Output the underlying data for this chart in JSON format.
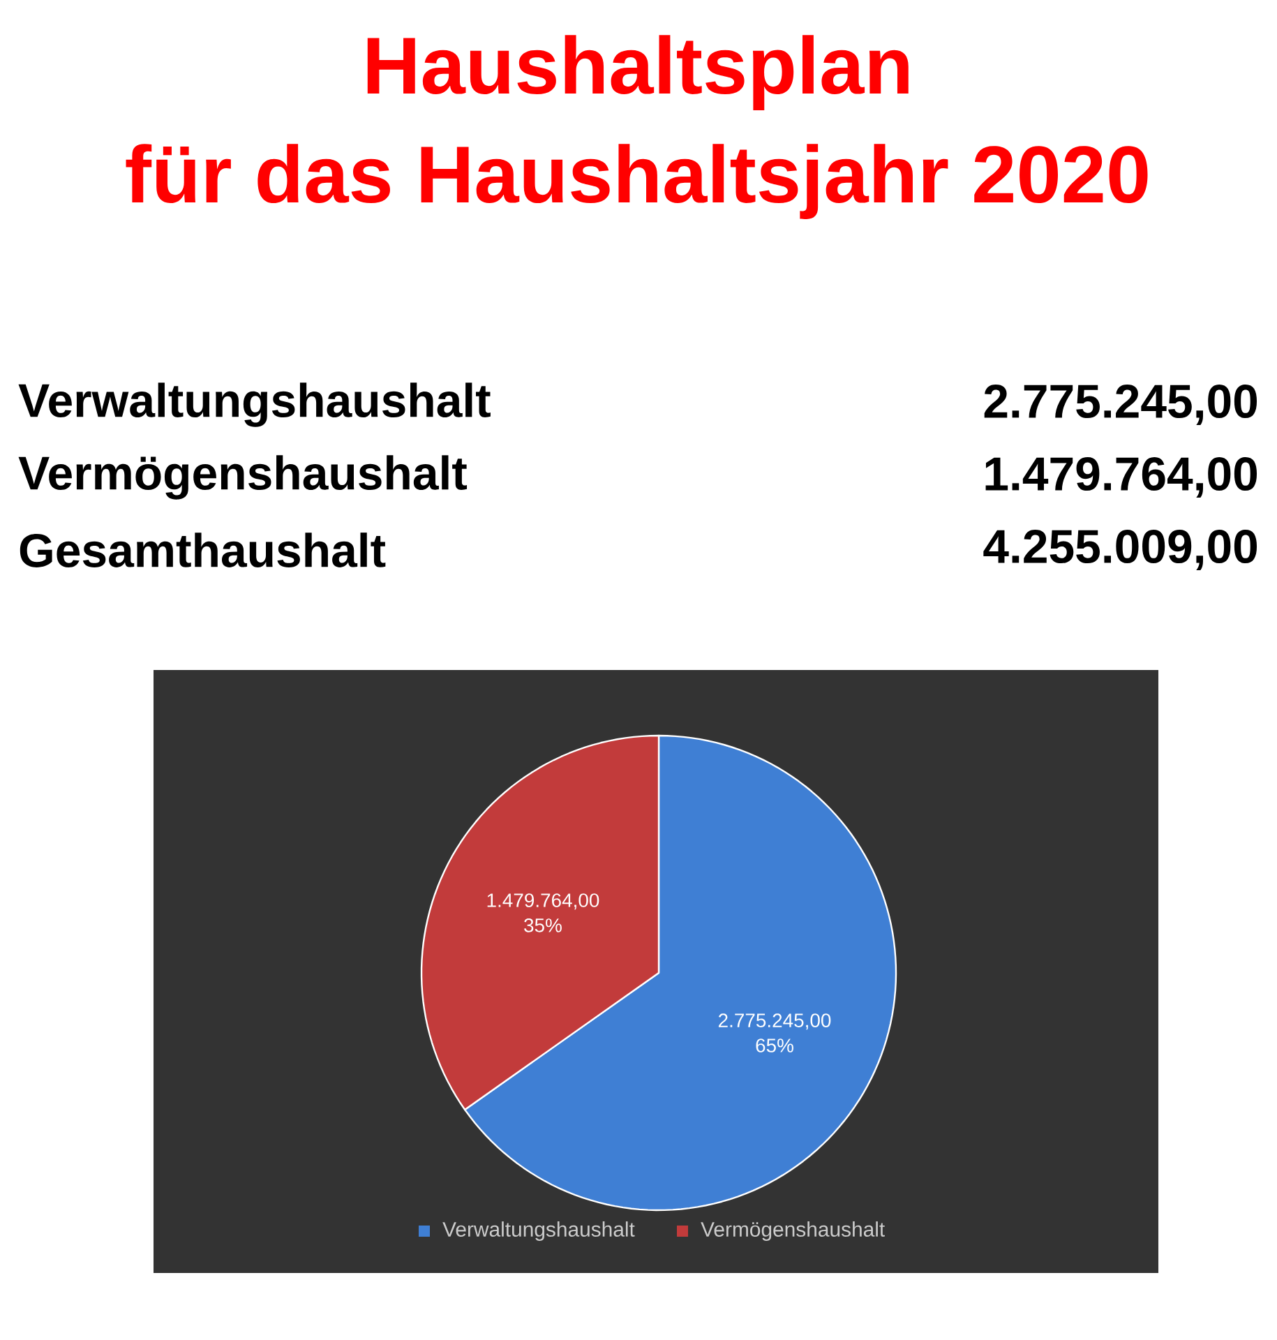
{
  "chart_data": {
    "type": "pie",
    "title": "Haushaltsplan",
    "subtitle": "für das Haushaltsjahr 2020",
    "categories": [
      "Verwaltungshaushalt",
      "Vermögenshaushalt"
    ],
    "values": [
      2775245,
      1479764
    ],
    "colors": [
      "#3f7fd4",
      "#c23b3b"
    ],
    "value_labels": [
      "2.775.245,00",
      "1.479.764,00"
    ],
    "legend": "bottom",
    "annotations": [
      "Verwaltungshaushalt",
      "2.775.245,00",
      "Vermögenshaushalt",
      "1.479.764,00",
      "Gesamthaushalt",
      "4.255.009,00",
      {
        "text": "65%",
        "x": "Verwaltungshaushalt"
      },
      {
        "text": "35%",
        "x": "Vermögenshaushalt"
      }
    ]
  }
}
